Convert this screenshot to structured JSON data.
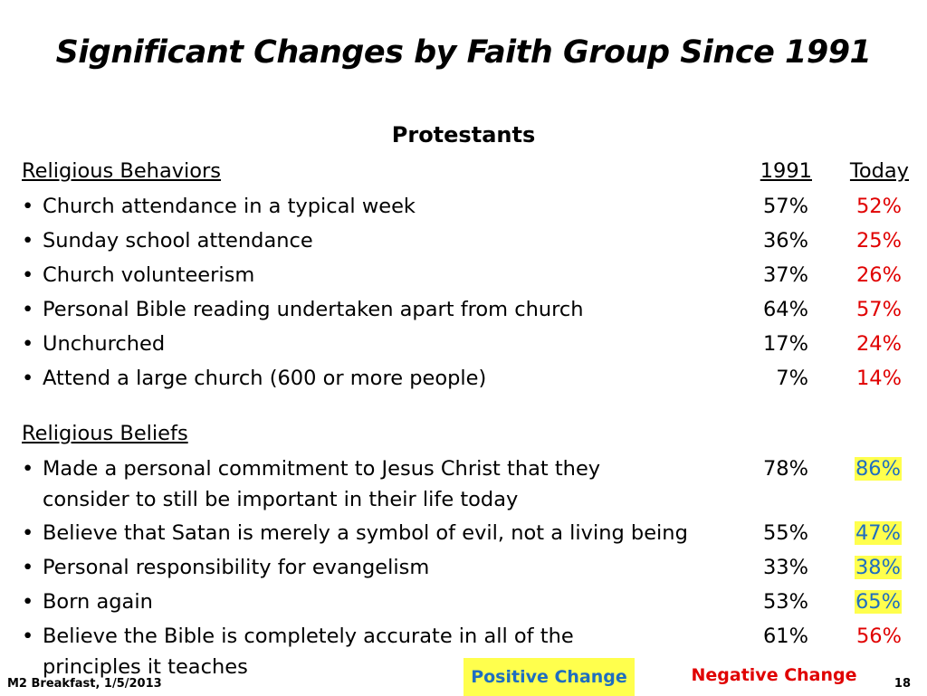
{
  "title": "Significant Changes by Faith Group Since 1991",
  "subtitle": "Protestants",
  "columns": {
    "year": "1991",
    "today": "Today"
  },
  "behaviors": {
    "heading": "Religious Behaviors",
    "items": [
      {
        "label": "Church attendance in a typical week",
        "v1991": "57%",
        "today": "52%",
        "change": "negative"
      },
      {
        "label": "Sunday school attendance",
        "v1991": "36%",
        "today": "25%",
        "change": "negative"
      },
      {
        "label": "Church volunteerism",
        "v1991": "37%",
        "today": "26%",
        "change": "negative"
      },
      {
        "label": "Personal Bible reading undertaken apart from church",
        "v1991": "64%",
        "today": "57%",
        "change": "negative"
      },
      {
        "label": "Unchurched",
        "v1991": "17%",
        "today": "24%",
        "change": "negative"
      },
      {
        "label": "Attend a large church (600 or more people)",
        "v1991": "7%",
        "today": "14%",
        "change": "negative"
      }
    ]
  },
  "beliefs": {
    "heading": "Religious Beliefs",
    "items": [
      {
        "label": "Made a personal commitment to Jesus Christ that they",
        "label2": "consider to still be important in their life today",
        "v1991": "78%",
        "today": "86%",
        "change": "positive"
      },
      {
        "label": "Believe that Satan is merely a symbol of evil, not a living being",
        "v1991": "55%",
        "today": "47%",
        "change": "positive"
      },
      {
        "label": "Personal responsibility for evangelism",
        "v1991": "33%",
        "today": "38%",
        "change": "positive"
      },
      {
        "label": "Born again",
        "v1991": "53%",
        "today": "65%",
        "change": "positive"
      },
      {
        "label": "Believe the Bible is completely accurate in all of the",
        "label2": "principles it teaches",
        "v1991": "61%",
        "today": "56%",
        "change": "negative"
      }
    ]
  },
  "legend": {
    "positive": "Positive Change",
    "negative": "Negative Change"
  },
  "footer": {
    "left": "M2 Breakfast, 1/5/2013",
    "page": "18"
  },
  "colors": {
    "positive": "#1f6ec0",
    "negative": "#e00000",
    "highlight": "#ffff4d"
  }
}
